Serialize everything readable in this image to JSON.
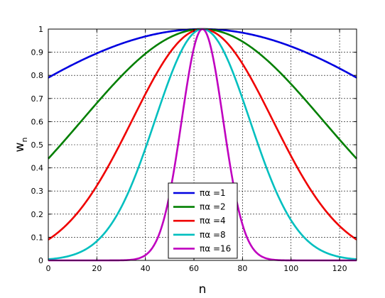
{
  "chart_data": {
    "type": "line",
    "title": "",
    "xlabel": "n",
    "ylabel": "w",
    "ylabel_sub": "n",
    "xlim": [
      0,
      127
    ],
    "ylim": [
      0,
      1
    ],
    "x_ticks": [
      0,
      20,
      40,
      60,
      80,
      100,
      120
    ],
    "y_ticks": [
      0,
      0.1,
      0.2,
      0.3,
      0.4,
      0.5,
      0.6,
      0.7,
      0.8,
      0.9,
      1
    ],
    "grid": true,
    "legend_position": "bottom-center",
    "center": 63.5,
    "half_width": 63.5,
    "series": [
      {
        "name": "πα =1",
        "alpha": 1,
        "color": "#0000e0",
        "edge_value": 0.79
      },
      {
        "name": "πα =2",
        "alpha": 2,
        "color": "#007f00",
        "edge_value": 0.44
      },
      {
        "name": "πα =4",
        "alpha": 4,
        "color": "#ef0000",
        "edge_value": 0.09
      },
      {
        "name": "πα =8",
        "alpha": 8,
        "color": "#00bfbf",
        "edge_value": 0.005
      },
      {
        "name": "πα =16",
        "alpha": 16,
        "color": "#bf00bf",
        "edge_value": 0.0
      }
    ]
  }
}
